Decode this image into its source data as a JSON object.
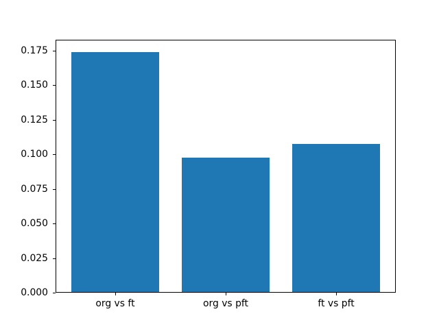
{
  "figure": {
    "background": "#ffffff",
    "frame_color": "#000000",
    "text_color": "#000000"
  },
  "chart_data": {
    "type": "bar",
    "title": "",
    "xlabel": "",
    "ylabel": "",
    "categories": [
      "org vs ft",
      "org vs pft",
      "ft vs pft"
    ],
    "values": [
      0.1742,
      0.0975,
      0.1074
    ],
    "bar_color": "#1f77b4",
    "bar_width_data_units": 0.8,
    "ylim": [
      0,
      0.1829
    ],
    "yticks": [
      0.0,
      0.025,
      0.05,
      0.075,
      0.1,
      0.125,
      0.15,
      0.175
    ],
    "ytick_labels": [
      "0.000",
      "0.025",
      "0.050",
      "0.075",
      "0.100",
      "0.125",
      "0.150",
      "0.175"
    ],
    "grid": false,
    "legend": null
  }
}
